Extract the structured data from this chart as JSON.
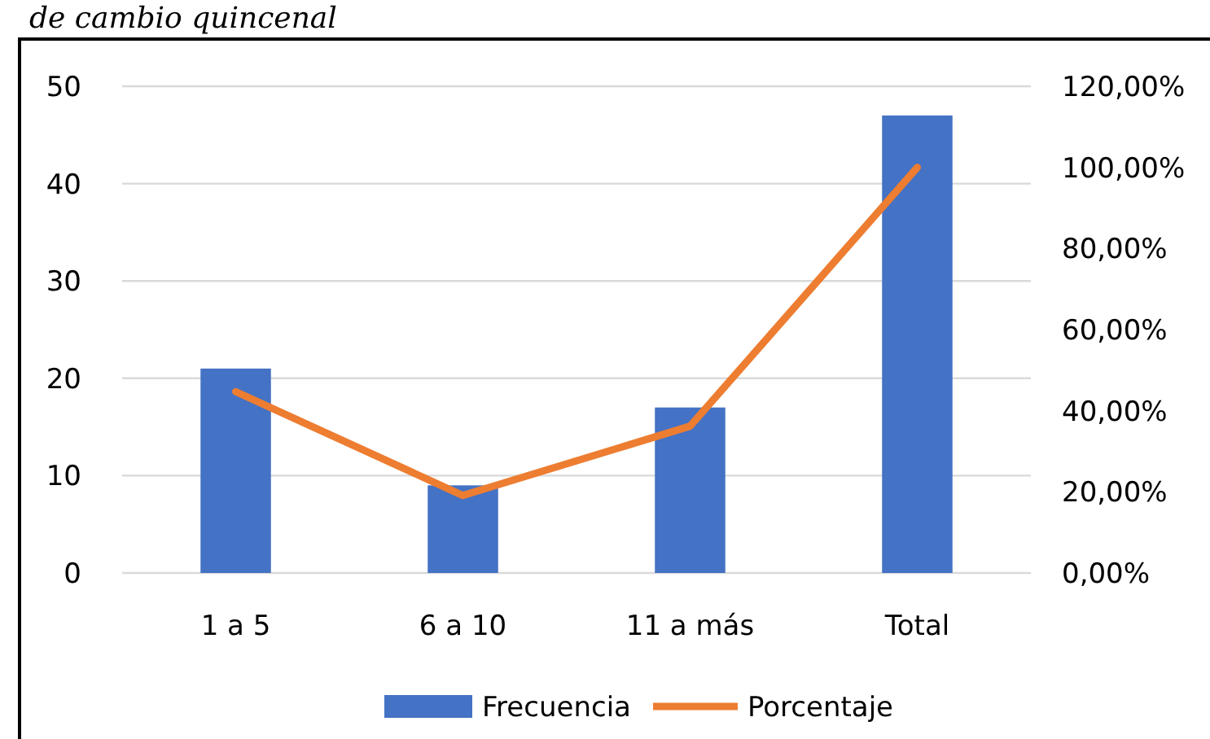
{
  "chart_data": {
    "type": "bar",
    "title": "de cambio quincenal",
    "categories": [
      "1 a 5",
      "6 a 10",
      "11 a más",
      "Total"
    ],
    "series": [
      {
        "name": "Frecuencia",
        "color": "#4472c4",
        "values": [
          21,
          9,
          17,
          47
        ]
      },
      {
        "name": "Porcentaje",
        "type": "line",
        "axis": "y2",
        "color": "#ed7d31",
        "values": [
          44.7,
          19.1,
          36.2,
          100
        ]
      }
    ],
    "ylim": [
      0,
      50
    ],
    "yticks": [
      0,
      10,
      20,
      30,
      40,
      50
    ],
    "y2lim": [
      0,
      120
    ],
    "y2ticks": [
      {
        "value": 0,
        "label": "0,00%"
      },
      {
        "value": 20,
        "label": "20,00%"
      },
      {
        "value": 40,
        "label": "40,00%"
      },
      {
        "value": 60,
        "label": "60,00%"
      },
      {
        "value": 80,
        "label": "80,00%"
      },
      {
        "value": 100,
        "label": "100,00%"
      },
      {
        "value": 120,
        "label": "120,00%"
      }
    ],
    "grid": "y",
    "legend": "bottom",
    "marker": "none",
    "line_style": "solid"
  }
}
